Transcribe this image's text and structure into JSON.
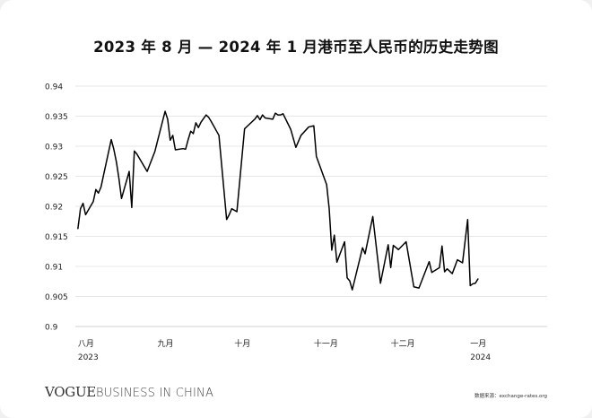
{
  "page": {
    "title": "2023 年 8 月 — 2024 年 1 月港币至人民币的历史走势图",
    "brand_primary": "VOGUE",
    "brand_secondary": "BUSINESS IN CHINA",
    "source": "数据来源：exchange-rates.org"
  },
  "colors": {
    "background": "#f0f0f0",
    "card": "#ffffff",
    "line": "#000000",
    "grid": "#d0d0d0"
  },
  "chart_data": {
    "type": "line",
    "title": "2023 年 8 月 — 2024 年 1 月港币至人民币的历史走势图",
    "xlabel": "",
    "ylabel": "",
    "ylim": [
      0.9,
      0.94
    ],
    "yticks": [
      0.9,
      0.905,
      0.91,
      0.915,
      0.92,
      0.925,
      0.93,
      0.935,
      0.94
    ],
    "ytick_labels": [
      "0.9",
      "0.905",
      "0.91",
      "0.915",
      "0.92",
      "0.925",
      "0.93",
      "0.935",
      "0.94"
    ],
    "grid": true,
    "xlim": [
      "2023-07-31",
      "2024-01-31"
    ],
    "xticks": [
      {
        "date": "2023-08-01",
        "label": "八月",
        "sublabel": "2023"
      },
      {
        "date": "2023-09-01",
        "label": "九月",
        "sublabel": ""
      },
      {
        "date": "2023-10-01",
        "label": "十月",
        "sublabel": ""
      },
      {
        "date": "2023-11-01",
        "label": "十一月",
        "sublabel": ""
      },
      {
        "date": "2023-12-01",
        "label": "十二月",
        "sublabel": ""
      },
      {
        "date": "2024-01-01",
        "label": "一月",
        "sublabel": "2024"
      }
    ],
    "series": [
      {
        "points": [
          [
            "2023-08-01",
            0.9163
          ],
          [
            "2023-08-02",
            0.9196
          ],
          [
            "2023-08-03",
            0.9205
          ],
          [
            "2023-08-04",
            0.9186
          ],
          [
            "2023-08-07",
            0.9208
          ],
          [
            "2023-08-08",
            0.9228
          ],
          [
            "2023-08-09",
            0.9222
          ],
          [
            "2023-08-10",
            0.9232
          ],
          [
            "2023-08-11",
            0.9252
          ],
          [
            "2023-08-14",
            0.9311
          ],
          [
            "2023-08-15",
            0.9295
          ],
          [
            "2023-08-16",
            0.9274
          ],
          [
            "2023-08-17",
            0.9246
          ],
          [
            "2023-08-18",
            0.9213
          ],
          [
            "2023-08-21",
            0.9258
          ],
          [
            "2023-08-22",
            0.9198
          ],
          [
            "2023-08-23",
            0.9292
          ],
          [
            "2023-08-24",
            0.9287
          ],
          [
            "2023-08-28",
            0.9258
          ],
          [
            "2023-08-31",
            0.9291
          ],
          [
            "2023-09-01",
            0.9308
          ],
          [
            "2023-09-04",
            0.9358
          ],
          [
            "2023-09-05",
            0.9345
          ],
          [
            "2023-09-06",
            0.931
          ],
          [
            "2023-09-07",
            0.9318
          ],
          [
            "2023-09-08",
            0.9294
          ],
          [
            "2023-09-11",
            0.9296
          ],
          [
            "2023-09-12",
            0.9295
          ],
          [
            "2023-09-13",
            0.9311
          ],
          [
            "2023-09-14",
            0.9325
          ],
          [
            "2023-09-15",
            0.9321
          ],
          [
            "2023-09-16",
            0.9339
          ],
          [
            "2023-09-17",
            0.9331
          ],
          [
            "2023-09-18",
            0.934
          ],
          [
            "2023-09-19",
            0.9346
          ],
          [
            "2023-09-20",
            0.9352
          ],
          [
            "2023-09-21",
            0.9348
          ],
          [
            "2023-09-22",
            0.9341
          ],
          [
            "2023-09-25",
            0.9318
          ],
          [
            "2023-09-28",
            0.9178
          ],
          [
            "2023-09-29",
            0.9186
          ],
          [
            "2023-09-30",
            0.9196
          ],
          [
            "2023-10-02",
            0.9191
          ],
          [
            "2023-10-05",
            0.9329
          ],
          [
            "2023-10-06",
            0.9333
          ],
          [
            "2023-10-09",
            0.9345
          ],
          [
            "2023-10-10",
            0.9351
          ],
          [
            "2023-10-11",
            0.9344
          ],
          [
            "2023-10-12",
            0.9352
          ],
          [
            "2023-10-13",
            0.9347
          ],
          [
            "2023-10-16",
            0.9345
          ],
          [
            "2023-10-17",
            0.9355
          ],
          [
            "2023-10-18",
            0.9352
          ],
          [
            "2023-10-19",
            0.9352
          ],
          [
            "2023-10-20",
            0.9354
          ],
          [
            "2023-10-23",
            0.9328
          ],
          [
            "2023-10-25",
            0.9298
          ],
          [
            "2023-10-27",
            0.9318
          ],
          [
            "2023-10-30",
            0.9332
          ],
          [
            "2023-11-01",
            0.9334
          ],
          [
            "2023-11-02",
            0.9283
          ],
          [
            "2023-11-06",
            0.9236
          ],
          [
            "2023-11-07",
            0.9196
          ],
          [
            "2023-11-08",
            0.9127
          ],
          [
            "2023-11-09",
            0.9152
          ],
          [
            "2023-11-10",
            0.9107
          ],
          [
            "2023-11-13",
            0.9141
          ],
          [
            "2023-11-14",
            0.9081
          ],
          [
            "2023-11-15",
            0.9076
          ],
          [
            "2023-11-16",
            0.9061
          ],
          [
            "2023-11-20",
            0.9131
          ],
          [
            "2023-11-21",
            0.9121
          ],
          [
            "2023-11-24",
            0.9183
          ],
          [
            "2023-11-27",
            0.9072
          ],
          [
            "2023-11-30",
            0.9136
          ],
          [
            "2023-12-01",
            0.9098
          ],
          [
            "2023-12-02",
            0.9135
          ],
          [
            "2023-12-04",
            0.9128
          ],
          [
            "2023-12-07",
            0.9141
          ],
          [
            "2023-12-10",
            0.9066
          ],
          [
            "2023-12-12",
            0.9064
          ],
          [
            "2023-12-16",
            0.9108
          ],
          [
            "2023-12-17",
            0.909
          ],
          [
            "2023-12-20",
            0.9098
          ],
          [
            "2023-12-21",
            0.9134
          ],
          [
            "2023-12-22",
            0.9091
          ],
          [
            "2023-12-23",
            0.9096
          ],
          [
            "2023-12-25",
            0.9088
          ],
          [
            "2023-12-27",
            0.9111
          ],
          [
            "2023-12-29",
            0.9106
          ],
          [
            "2023-12-31",
            0.9178
          ],
          [
            "2024-01-01",
            0.9068
          ],
          [
            "2024-01-02",
            0.9071
          ],
          [
            "2024-01-03",
            0.9072
          ],
          [
            "2024-01-04",
            0.9079
          ]
        ]
      }
    ]
  }
}
